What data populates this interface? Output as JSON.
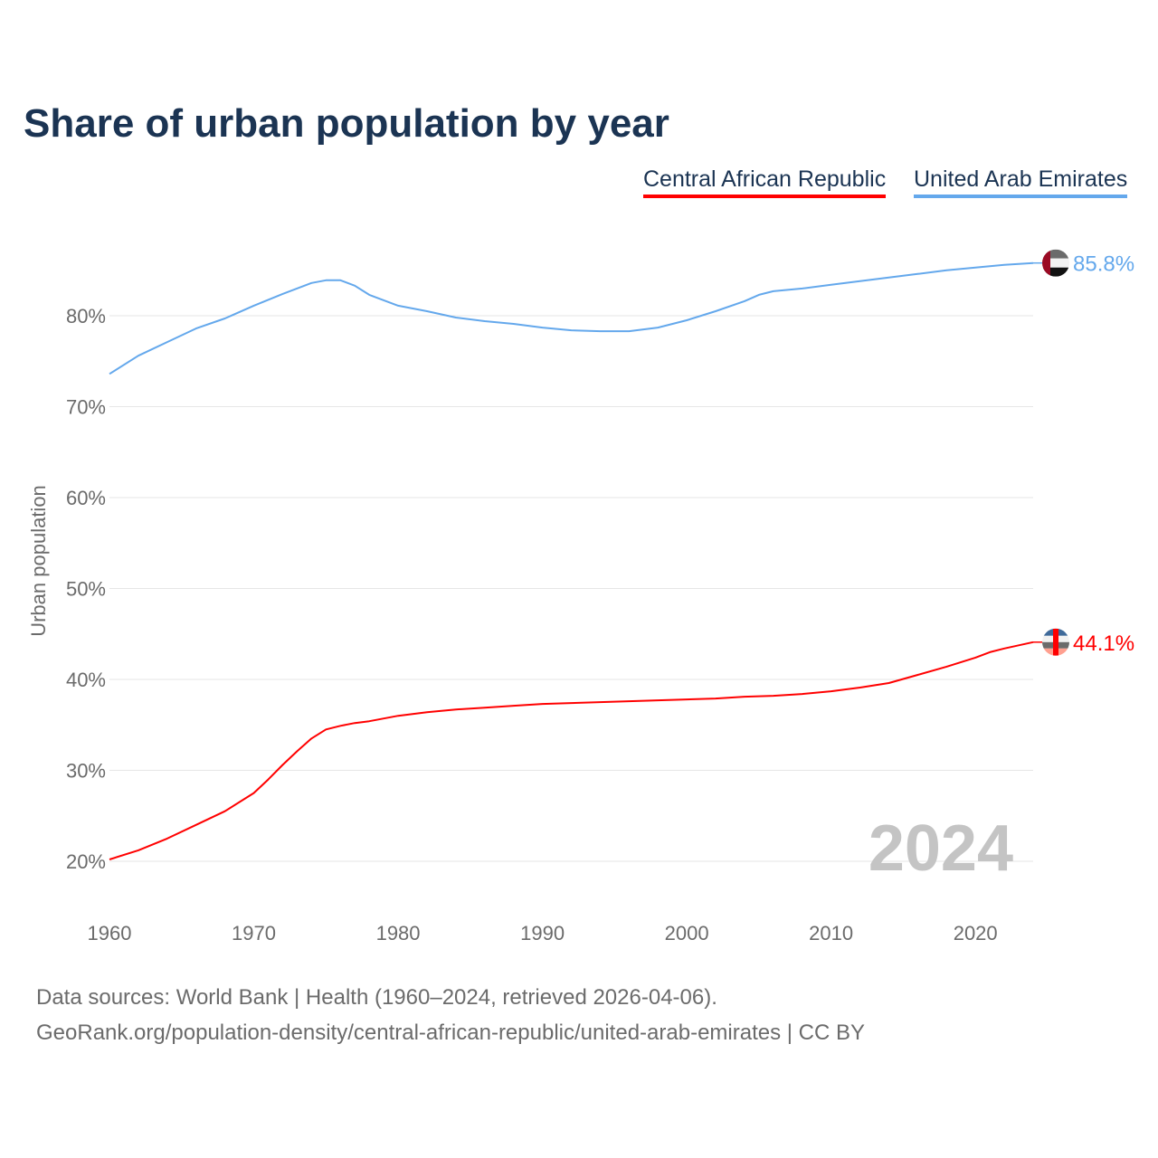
{
  "chart_data": {
    "type": "line",
    "title": "Share of urban population by year",
    "xlabel": "",
    "ylabel": "Urban population",
    "xlim": [
      1960,
      2024
    ],
    "ylim": [
      15,
      90
    ],
    "x_ticks": [
      1960,
      1970,
      1980,
      1990,
      2000,
      2010,
      2020
    ],
    "x_tick_labels": [
      "1960",
      "1970",
      "1980",
      "1990",
      "2000",
      "2010",
      "2020"
    ],
    "y_ticks": [
      20,
      30,
      40,
      50,
      60,
      70,
      80
    ],
    "y_tick_labels": [
      "20%",
      "30%",
      "40%",
      "50%",
      "60%",
      "70%",
      "80%"
    ],
    "grid": true,
    "legend_position": "top-right",
    "year_watermark": "2024",
    "series": [
      {
        "name": "Central African Republic",
        "color": "#ff0000",
        "end_label": "44.1%",
        "x": [
          1960,
          1962,
          1964,
          1966,
          1968,
          1970,
          1971,
          1972,
          1973,
          1974,
          1975,
          1976,
          1977,
          1978,
          1980,
          1982,
          1984,
          1986,
          1988,
          1990,
          1992,
          1994,
          1996,
          1998,
          2000,
          2002,
          2004,
          2006,
          2008,
          2010,
          2012,
          2014,
          2016,
          2018,
          2020,
          2021,
          2022,
          2024
        ],
        "values": [
          20.2,
          21.2,
          22.5,
          24.0,
          25.5,
          27.5,
          29.0,
          30.6,
          32.1,
          33.5,
          34.5,
          34.9,
          35.2,
          35.4,
          36.0,
          36.4,
          36.7,
          36.9,
          37.1,
          37.3,
          37.4,
          37.5,
          37.6,
          37.7,
          37.8,
          37.9,
          38.1,
          38.2,
          38.4,
          38.7,
          39.1,
          39.6,
          40.5,
          41.4,
          42.4,
          43.0,
          43.4,
          44.1
        ]
      },
      {
        "name": "United Arab Emirates",
        "color": "#64a8ec",
        "end_label": "85.8%",
        "x": [
          1960,
          1962,
          1964,
          1966,
          1968,
          1970,
          1972,
          1974,
          1975,
          1976,
          1977,
          1978,
          1980,
          1982,
          1984,
          1986,
          1988,
          1990,
          1992,
          1994,
          1996,
          1998,
          2000,
          2002,
          2004,
          2005,
          2006,
          2008,
          2010,
          2012,
          2014,
          2016,
          2018,
          2020,
          2022,
          2024
        ],
        "values": [
          73.6,
          75.6,
          77.1,
          78.6,
          79.7,
          81.1,
          82.4,
          83.6,
          83.9,
          83.9,
          83.3,
          82.3,
          81.1,
          80.5,
          79.8,
          79.4,
          79.1,
          78.7,
          78.4,
          78.3,
          78.3,
          78.7,
          79.5,
          80.5,
          81.6,
          82.3,
          82.7,
          83.0,
          83.4,
          83.8,
          84.2,
          84.6,
          85.0,
          85.3,
          85.6,
          85.8
        ]
      }
    ]
  },
  "footer": {
    "line1": "Data sources: World Bank | Health (1960–2024, retrieved 2026-04-06).",
    "line2": "GeoRank.org/population-density/central-african-republic/united-arab-emirates | CC BY"
  }
}
